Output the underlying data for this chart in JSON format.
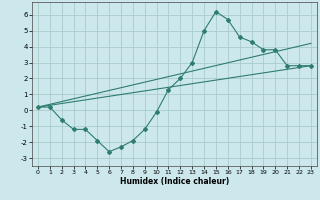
{
  "xlabel": "Humidex (Indice chaleur)",
  "background_color": "#cce8ec",
  "line_color": "#2e7d6e",
  "grid_color": "#aacccc",
  "xlim": [
    -0.5,
    23.5
  ],
  "ylim": [
    -3.5,
    6.8
  ],
  "xticks": [
    0,
    1,
    2,
    3,
    4,
    5,
    6,
    7,
    8,
    9,
    10,
    11,
    12,
    13,
    14,
    15,
    16,
    17,
    18,
    19,
    20,
    21,
    22,
    23
  ],
  "yticks": [
    -3,
    -2,
    -1,
    0,
    1,
    2,
    3,
    4,
    5,
    6
  ],
  "series1_x": [
    0,
    1,
    2,
    3,
    4,
    5,
    6,
    7,
    8,
    9,
    10,
    11,
    12,
    13,
    14,
    15,
    16,
    17,
    18,
    19,
    20,
    21,
    22,
    23
  ],
  "series1_y": [
    0.2,
    0.2,
    -0.6,
    -1.2,
    -1.2,
    -1.9,
    -2.6,
    -2.3,
    -1.9,
    -1.2,
    -0.1,
    1.3,
    2.0,
    3.0,
    5.0,
    6.2,
    5.7,
    4.6,
    4.3,
    3.8,
    3.8,
    2.8,
    2.8,
    2.8
  ],
  "trend1_x": [
    0,
    23
  ],
  "trend1_y": [
    0.2,
    2.8
  ],
  "trend2_x": [
    0,
    23
  ],
  "trend2_y": [
    0.2,
    4.2
  ]
}
